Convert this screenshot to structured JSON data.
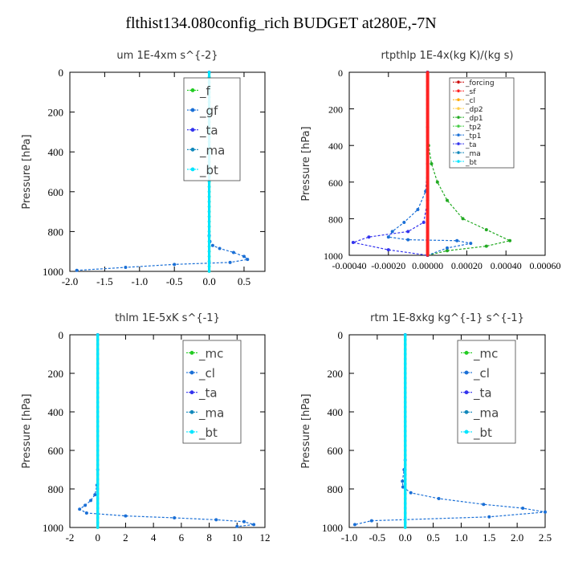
{
  "figure_title": "flthist134.080config_rich  BUDGET at280E,-7N",
  "colors": {
    "f": "#22cc22",
    "gf": "#1a6fd6",
    "ta": "#3333ee",
    "ma": "#1188bb",
    "bt": "#00e5ff",
    "mc": "#22cc22",
    "cl": "#1a6fd6",
    "forcing": "#cc0000",
    "sf": "#ff2222",
    "cl_small": "#ffaa00",
    "dp2": "#ffcc44",
    "dp1": "#22aa22",
    "tp2": "#44cc44",
    "tp1": "#1a6fd6",
    "ta_small": "#3333ee",
    "ma_small": "#1188bb",
    "bt_small": "#00e5ff"
  },
  "chart_data": [
    {
      "type": "line",
      "title": "um   1E-4xm  s^{-2}",
      "ylabel": "Pressure [hPa]",
      "xlim": [
        -2,
        0.8
      ],
      "ylim": [
        1000,
        0
      ],
      "xticks": [
        -2,
        -1.5,
        -1,
        -0.5,
        0,
        0.5
      ],
      "xticklabels": [
        "-2.0",
        "-1.5",
        "-1.0",
        "-0.5",
        "0.0",
        "0.5"
      ],
      "yticks": [
        0,
        200,
        400,
        600,
        800,
        1000
      ],
      "legend": [
        "_f",
        "_gf",
        "_ta",
        "_ma",
        "_bt"
      ],
      "series": [
        {
          "name": "_f",
          "color_key": "f",
          "x": [
            0,
            0
          ],
          "y": [
            0,
            1000
          ]
        },
        {
          "name": "_gf",
          "color_key": "gf",
          "x": [
            0,
            0,
            0.01,
            0.05,
            0.15,
            0.35,
            0.5,
            0.55,
            0.3,
            -0.5,
            -1.2,
            -1.9
          ],
          "y": [
            0,
            820,
            850,
            870,
            885,
            905,
            925,
            940,
            955,
            965,
            980,
            995
          ]
        },
        {
          "name": "_bt",
          "color_key": "bt",
          "x": [
            0,
            0
          ],
          "y": [
            0,
            1000
          ]
        }
      ]
    },
    {
      "type": "line",
      "title": "rtpthlp   1E-4x(kg K)/(kg s)",
      "ylabel": "Pressure [hPa]",
      "xlim": [
        -0.0004,
        0.0006
      ],
      "ylim": [
        1000,
        0
      ],
      "xticks": [
        -0.0004,
        -0.0002,
        0,
        0.0002,
        0.0004,
        0.0006
      ],
      "xticklabels": [
        "-0.00040",
        "-0.00020",
        "0.00000",
        "0.00020",
        "0.00040",
        "0.00060"
      ],
      "yticks": [
        0,
        200,
        400,
        600,
        800,
        1000
      ],
      "legend": [
        "_forcing",
        "_sf",
        "_cl",
        "_dp2",
        "_dp1",
        "_tp2",
        "_tp1",
        "_ta",
        "_ma",
        "_bt"
      ],
      "series": [
        {
          "name": "_dp1",
          "color_key": "dp1",
          "x": [
            0,
            0,
            5e-06,
            2e-05,
            5e-05,
            0.0001,
            0.00018,
            0.0003,
            0.00042,
            0.0003,
            0.0001,
            0
          ],
          "y": [
            0,
            300,
            400,
            500,
            600,
            700,
            800,
            860,
            920,
            950,
            975,
            1000
          ]
        },
        {
          "name": "_tp1",
          "color_key": "tp1",
          "x": [
            0,
            0,
            -1e-05,
            -5e-05,
            -0.00012,
            -0.00018,
            -0.0002,
            -0.0001,
            0.00015,
            0.00022,
            0.0001,
            0
          ],
          "y": [
            0,
            500,
            650,
            750,
            820,
            870,
            900,
            915,
            920,
            935,
            960,
            1000
          ]
        },
        {
          "name": "_ta",
          "color_key": "ta",
          "x": [
            0,
            0,
            -2e-05,
            -0.0001,
            -0.0003,
            -0.00038,
            -0.0002,
            0
          ],
          "y": [
            0,
            700,
            820,
            870,
            900,
            930,
            970,
            1000
          ]
        },
        {
          "name": "_sf",
          "color_key": "sf",
          "x": [
            0,
            0
          ],
          "y": [
            0,
            1000
          ]
        }
      ]
    },
    {
      "type": "line",
      "title": "thlm   1E-5xK  s^{-1}",
      "ylabel": "Pressure [hPa]",
      "xlim": [
        -2,
        12
      ],
      "ylim": [
        1000,
        0
      ],
      "xticks": [
        -2,
        0,
        2,
        4,
        6,
        8,
        10,
        12
      ],
      "xticklabels": [
        "-2",
        "0",
        "2",
        "4",
        "6",
        "8",
        "10",
        "12"
      ],
      "yticks": [
        0,
        200,
        400,
        600,
        800,
        1000
      ],
      "legend": [
        "_mc",
        "_cl",
        "_ta",
        "_ma",
        "_bt"
      ],
      "series": [
        {
          "name": "_mc",
          "color_key": "mc",
          "x": [
            0,
            0
          ],
          "y": [
            0,
            1000
          ]
        },
        {
          "name": "_cl",
          "color_key": "cl",
          "x": [
            0,
            0,
            -0.05,
            -0.2,
            -0.5,
            -0.9,
            -1.3,
            -0.8,
            2,
            5.5,
            8.5,
            10.5,
            11.2,
            10
          ],
          "y": [
            0,
            700,
            780,
            830,
            860,
            885,
            905,
            925,
            940,
            950,
            960,
            970,
            985,
            995
          ]
        },
        {
          "name": "_bt",
          "color_key": "bt",
          "x": [
            0,
            0
          ],
          "y": [
            0,
            1000
          ]
        }
      ]
    },
    {
      "type": "line",
      "title": "rtm   1E-8xkg  kg^{-1}  s^{-1}",
      "ylabel": "Pressure [hPa]",
      "xlim": [
        -1,
        2.5
      ],
      "ylim": [
        1000,
        0
      ],
      "xticks": [
        -1,
        -0.5,
        0,
        0.5,
        1,
        1.5,
        2,
        2.5
      ],
      "xticklabels": [
        "-1.0",
        "-0.5",
        "0.0",
        "0.5",
        "1.0",
        "1.5",
        "2.0",
        "2.5"
      ],
      "yticks": [
        0,
        200,
        400,
        600,
        800,
        1000
      ],
      "legend": [
        "_mc",
        "_cl",
        "_ta",
        "_ma",
        "_bt"
      ],
      "series": [
        {
          "name": "_mc",
          "color_key": "mc",
          "x": [
            0,
            0
          ],
          "y": [
            0,
            1000
          ]
        },
        {
          "name": "_cl",
          "color_key": "cl",
          "x": [
            0,
            0,
            -0.02,
            -0.05,
            -0.04,
            0.1,
            0.6,
            1.4,
            2.1,
            2.5,
            1.5,
            -0.6,
            -0.9
          ],
          "y": [
            0,
            650,
            700,
            760,
            790,
            820,
            850,
            880,
            900,
            920,
            945,
            965,
            985
          ]
        },
        {
          "name": "_bt",
          "color_key": "bt",
          "x": [
            0,
            0
          ],
          "y": [
            0,
            1000
          ]
        }
      ]
    }
  ]
}
